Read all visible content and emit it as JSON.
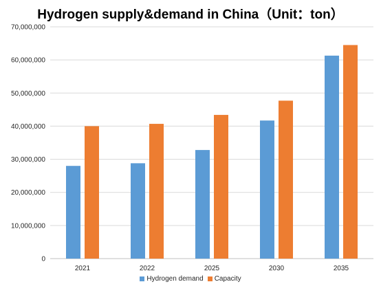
{
  "chart_data": {
    "type": "bar",
    "title": "Hydrogen supply&demand in China（Unit：ton）",
    "categories": [
      "2021",
      "2022",
      "2025",
      "2030",
      "2035"
    ],
    "series": [
      {
        "name": "Hydrogen demand",
        "color": "#5B9BD5",
        "values": [
          28000000,
          28800000,
          32800000,
          41700000,
          61300000
        ]
      },
      {
        "name": "Capacity",
        "color": "#ED7D31",
        "values": [
          40000000,
          40700000,
          43400000,
          47700000,
          64500000
        ]
      }
    ],
    "ylim": [
      0,
      70000000
    ],
    "yticks": [
      0,
      10000000,
      20000000,
      30000000,
      40000000,
      50000000,
      60000000,
      70000000
    ],
    "ytick_labels": [
      "0",
      "10,000,000",
      "20,000,000",
      "30,000,000",
      "40,000,000",
      "50,000,000",
      "60,000,000",
      "70,000,000"
    ],
    "grid": true,
    "legend_position": "bottom"
  }
}
